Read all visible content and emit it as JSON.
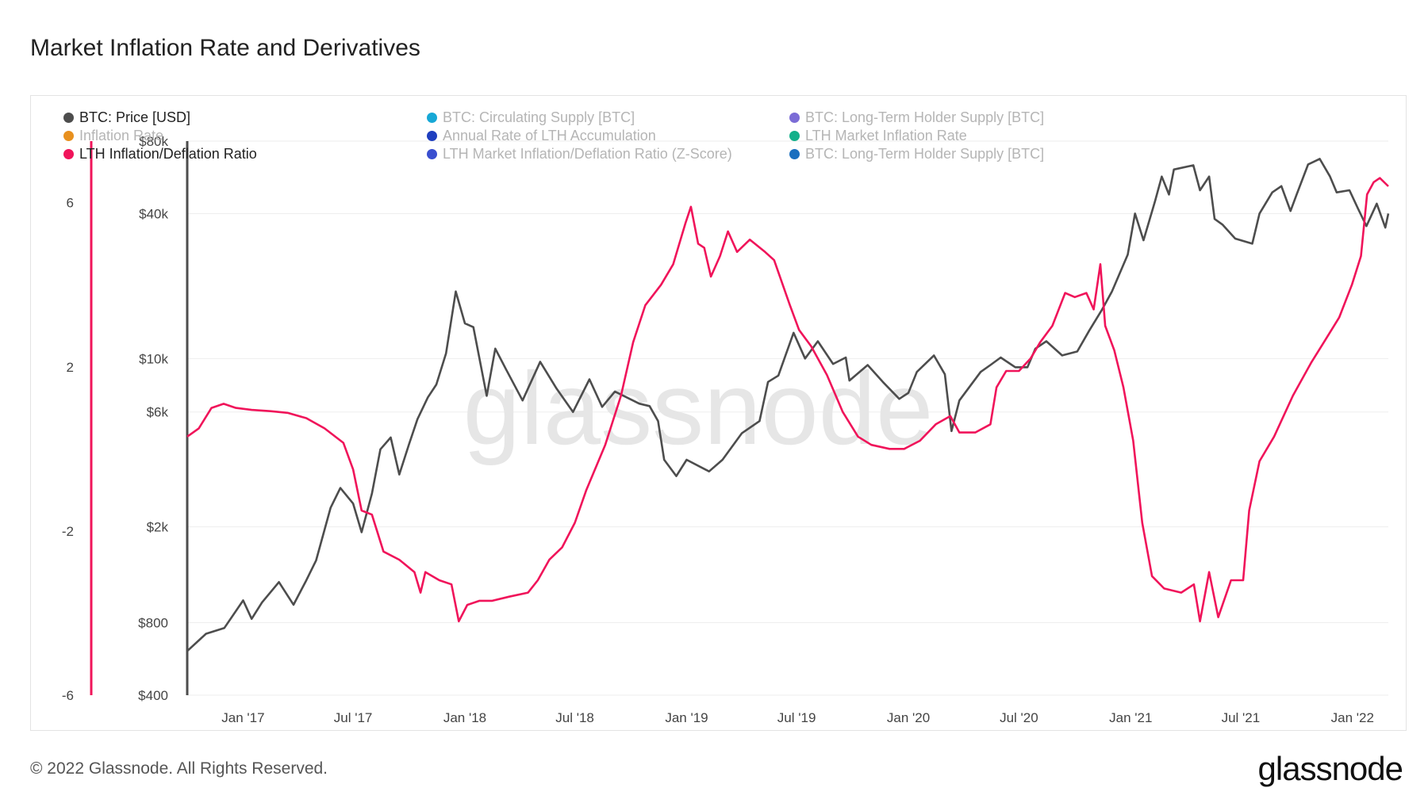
{
  "title": "Market Inflation Rate and Derivatives",
  "footer": {
    "copyright": "© 2022 Glassnode. All Rights Reserved.",
    "logo": "glassnode"
  },
  "watermark": "glassnode",
  "legend": [
    {
      "label": "BTC: Price [USD]",
      "color": "#4d4d4d",
      "active": true
    },
    {
      "label": "BTC: Circulating Supply [BTC]",
      "color": "#17a8d6",
      "active": false
    },
    {
      "label": "BTC: Long-Term Holder Supply [BTC]",
      "color": "#7b6cd6",
      "active": false
    },
    {
      "label": "Inflation Rate",
      "color": "#e8901e",
      "active": false
    },
    {
      "label": "Annual Rate of LTH Accumulation",
      "color": "#1f3fbf",
      "active": false
    },
    {
      "label": "LTH Market Inflation Rate",
      "color": "#12b08a",
      "active": false
    },
    {
      "label": "LTH Inflation/Deflation Ratio",
      "color": "#f0145a",
      "active": true
    },
    {
      "label": "LTH Market Inflation/Deflation Ratio (Z-Score)",
      "color": "#3a4fcf",
      "active": false
    },
    {
      "label": "BTC: Long-Term Holder Supply [BTC]",
      "color": "#1a6fbf",
      "active": false
    }
  ],
  "chart_data": {
    "type": "line",
    "x_tick_labels": [
      "Jan '17",
      "Jul '17",
      "Jan '18",
      "Jul '18",
      "Jan '19",
      "Jul '19",
      "Jan '20",
      "Jul '20",
      "Jan '21",
      "Jul '21",
      "Jan '22"
    ],
    "x_range": [
      "2016-10-01",
      "2022-03-01"
    ],
    "left_axis": {
      "ticks": [
        "6",
        "2",
        "-2",
        "-6"
      ],
      "values": [
        6,
        2,
        -2,
        -6
      ],
      "range": [
        -6,
        7.5
      ]
    },
    "right_axis": {
      "scale": "log",
      "ticks": [
        "$80k",
        "$40k",
        "$10k",
        "$6k",
        "$2k",
        "$800",
        "$400"
      ],
      "values": [
        80000,
        40000,
        10000,
        6000,
        2000,
        800,
        400
      ],
      "range": [
        400,
        80000
      ]
    },
    "series": [
      {
        "name": "BTC: Price [USD]",
        "color": "#4d4d4d",
        "axis": "right",
        "points": [
          [
            "2016-10-01",
            610
          ],
          [
            "2016-11-01",
            720
          ],
          [
            "2016-12-01",
            760
          ],
          [
            "2017-01-01",
            990
          ],
          [
            "2017-01-15",
            830
          ],
          [
            "2017-02-01",
            970
          ],
          [
            "2017-03-01",
            1180
          ],
          [
            "2017-03-25",
            950
          ],
          [
            "2017-04-15",
            1200
          ],
          [
            "2017-05-01",
            1450
          ],
          [
            "2017-05-25",
            2400
          ],
          [
            "2017-06-10",
            2900
          ],
          [
            "2017-07-01",
            2500
          ],
          [
            "2017-07-15",
            1900
          ],
          [
            "2017-08-01",
            2750
          ],
          [
            "2017-08-15",
            4200
          ],
          [
            "2017-09-01",
            4700
          ],
          [
            "2017-09-15",
            3300
          ],
          [
            "2017-10-01",
            4400
          ],
          [
            "2017-10-15",
            5600
          ],
          [
            "2017-11-01",
            6900
          ],
          [
            "2017-11-15",
            7800
          ],
          [
            "2017-12-01",
            10500
          ],
          [
            "2017-12-17",
            19000
          ],
          [
            "2018-01-01",
            14000
          ],
          [
            "2018-01-15",
            13500
          ],
          [
            "2018-02-06",
            7000
          ],
          [
            "2018-02-20",
            11000
          ],
          [
            "2018-03-10",
            9000
          ],
          [
            "2018-04-06",
            6700
          ],
          [
            "2018-05-05",
            9700
          ],
          [
            "2018-06-01",
            7500
          ],
          [
            "2018-06-28",
            6000
          ],
          [
            "2018-07-25",
            8200
          ],
          [
            "2018-08-15",
            6300
          ],
          [
            "2018-09-05",
            7300
          ],
          [
            "2018-10-15",
            6500
          ],
          [
            "2018-11-01",
            6350
          ],
          [
            "2018-11-15",
            5500
          ],
          [
            "2018-11-25",
            3800
          ],
          [
            "2018-12-15",
            3250
          ],
          [
            "2019-01-01",
            3800
          ],
          [
            "2019-02-07",
            3400
          ],
          [
            "2019-03-01",
            3800
          ],
          [
            "2019-04-02",
            4900
          ],
          [
            "2019-05-01",
            5500
          ],
          [
            "2019-05-15",
            8000
          ],
          [
            "2019-06-01",
            8500
          ],
          [
            "2019-06-26",
            12800
          ],
          [
            "2019-07-15",
            10000
          ],
          [
            "2019-08-05",
            11800
          ],
          [
            "2019-08-30",
            9500
          ],
          [
            "2019-09-20",
            10100
          ],
          [
            "2019-09-26",
            8100
          ],
          [
            "2019-10-26",
            9400
          ],
          [
            "2019-11-20",
            8000
          ],
          [
            "2019-12-17",
            6800
          ],
          [
            "2020-01-01",
            7200
          ],
          [
            "2020-01-15",
            8800
          ],
          [
            "2020-02-12",
            10300
          ],
          [
            "2020-03-01",
            8600
          ],
          [
            "2020-03-12",
            5000
          ],
          [
            "2020-03-25",
            6700
          ],
          [
            "2020-04-29",
            8800
          ],
          [
            "2020-05-15",
            9400
          ],
          [
            "2020-06-01",
            10100
          ],
          [
            "2020-06-25",
            9200
          ],
          [
            "2020-07-15",
            9200
          ],
          [
            "2020-07-28",
            11000
          ],
          [
            "2020-08-15",
            11800
          ],
          [
            "2020-09-10",
            10300
          ],
          [
            "2020-10-05",
            10700
          ],
          [
            "2020-10-25",
            13100
          ],
          [
            "2020-11-15",
            16000
          ],
          [
            "2020-12-01",
            19000
          ],
          [
            "2020-12-27",
            27000
          ],
          [
            "2021-01-08",
            40000
          ],
          [
            "2021-01-22",
            31000
          ],
          [
            "2021-02-10",
            45000
          ],
          [
            "2021-02-21",
            57000
          ],
          [
            "2021-03-05",
            48000
          ],
          [
            "2021-03-13",
            61000
          ],
          [
            "2021-04-14",
            63500
          ],
          [
            "2021-04-25",
            50000
          ],
          [
            "2021-05-10",
            57000
          ],
          [
            "2021-05-19",
            38000
          ],
          [
            "2021-06-01",
            36000
          ],
          [
            "2021-06-22",
            31500
          ],
          [
            "2021-07-20",
            30000
          ],
          [
            "2021-08-01",
            40000
          ],
          [
            "2021-08-22",
            49000
          ],
          [
            "2021-09-06",
            52000
          ],
          [
            "2021-09-21",
            41000
          ],
          [
            "2021-10-01",
            48000
          ],
          [
            "2021-10-20",
            64000
          ],
          [
            "2021-11-08",
            67500
          ],
          [
            "2021-11-25",
            57000
          ],
          [
            "2021-12-06",
            49000
          ],
          [
            "2021-12-27",
            50000
          ],
          [
            "2022-01-10",
            42000
          ],
          [
            "2022-01-24",
            35500
          ],
          [
            "2022-02-10",
            44000
          ],
          [
            "2022-02-24",
            35000
          ],
          [
            "2022-03-01",
            40000
          ]
        ]
      },
      {
        "name": "LTH Inflation/Deflation Ratio",
        "color": "#f0145a",
        "axis": "left",
        "points": [
          [
            "2016-10-01",
            0.3
          ],
          [
            "2016-10-20",
            0.5
          ],
          [
            "2016-11-10",
            1.0
          ],
          [
            "2016-11-30",
            1.1
          ],
          [
            "2016-12-20",
            1.0
          ],
          [
            "2017-01-15",
            0.95
          ],
          [
            "2017-02-15",
            0.92
          ],
          [
            "2017-03-15",
            0.88
          ],
          [
            "2017-04-15",
            0.75
          ],
          [
            "2017-05-15",
            0.5
          ],
          [
            "2017-06-15",
            0.15
          ],
          [
            "2017-07-01",
            -0.5
          ],
          [
            "2017-07-15",
            -1.5
          ],
          [
            "2017-08-01",
            -1.6
          ],
          [
            "2017-08-20",
            -2.5
          ],
          [
            "2017-09-15",
            -2.7
          ],
          [
            "2017-10-10",
            -3.0
          ],
          [
            "2017-10-20",
            -3.5
          ],
          [
            "2017-10-28",
            -3.0
          ],
          [
            "2017-11-20",
            -3.2
          ],
          [
            "2017-12-10",
            -3.3
          ],
          [
            "2017-12-22",
            -4.2
          ],
          [
            "2018-01-05",
            -3.8
          ],
          [
            "2018-01-25",
            -3.7
          ],
          [
            "2018-02-15",
            -3.7
          ],
          [
            "2018-03-15",
            -3.6
          ],
          [
            "2018-04-15",
            -3.5
          ],
          [
            "2018-05-01",
            -3.2
          ],
          [
            "2018-05-20",
            -2.7
          ],
          [
            "2018-06-10",
            -2.4
          ],
          [
            "2018-07-01",
            -1.8
          ],
          [
            "2018-07-20",
            -1.0
          ],
          [
            "2018-08-20",
            0.1
          ],
          [
            "2018-09-15",
            1.3
          ],
          [
            "2018-10-05",
            2.6
          ],
          [
            "2018-10-25",
            3.5
          ],
          [
            "2018-11-20",
            4.0
          ],
          [
            "2018-12-10",
            4.5
          ],
          [
            "2018-12-20",
            5.0
          ],
          [
            "2018-12-30",
            5.5
          ],
          [
            "2019-01-08",
            5.9
          ],
          [
            "2019-01-20",
            5.0
          ],
          [
            "2019-01-30",
            4.9
          ],
          [
            "2019-02-10",
            4.2
          ],
          [
            "2019-02-25",
            4.7
          ],
          [
            "2019-03-10",
            5.3
          ],
          [
            "2019-03-25",
            4.8
          ],
          [
            "2019-04-15",
            5.1
          ],
          [
            "2019-05-10",
            4.8
          ],
          [
            "2019-05-25",
            4.6
          ],
          [
            "2019-06-20",
            3.5
          ],
          [
            "2019-07-05",
            2.9
          ],
          [
            "2019-07-25",
            2.5
          ],
          [
            "2019-08-20",
            1.8
          ],
          [
            "2019-09-15",
            0.9
          ],
          [
            "2019-10-10",
            0.3
          ],
          [
            "2019-11-01",
            0.1
          ],
          [
            "2019-12-01",
            0.0
          ],
          [
            "2019-12-25",
            0.0
          ],
          [
            "2020-01-20",
            0.2
          ],
          [
            "2020-02-15",
            0.6
          ],
          [
            "2020-03-10",
            0.8
          ],
          [
            "2020-03-25",
            0.4
          ],
          [
            "2020-04-20",
            0.4
          ],
          [
            "2020-05-15",
            0.6
          ],
          [
            "2020-05-25",
            1.5
          ],
          [
            "2020-06-10",
            1.9
          ],
          [
            "2020-07-01",
            1.9
          ],
          [
            "2020-07-20",
            2.2
          ],
          [
            "2020-08-05",
            2.6
          ],
          [
            "2020-08-25",
            3.0
          ],
          [
            "2020-09-15",
            3.8
          ],
          [
            "2020-10-01",
            3.7
          ],
          [
            "2020-10-20",
            3.8
          ],
          [
            "2020-11-01",
            3.4
          ],
          [
            "2020-11-12",
            4.5
          ],
          [
            "2020-11-20",
            3.0
          ],
          [
            "2020-12-05",
            2.4
          ],
          [
            "2020-12-20",
            1.5
          ],
          [
            "2021-01-05",
            0.2
          ],
          [
            "2021-01-20",
            -1.8
          ],
          [
            "2021-02-05",
            -3.1
          ],
          [
            "2021-02-25",
            -3.4
          ],
          [
            "2021-03-25",
            -3.5
          ],
          [
            "2021-04-15",
            -3.3
          ],
          [
            "2021-04-25",
            -4.2
          ],
          [
            "2021-05-10",
            -3.0
          ],
          [
            "2021-05-25",
            -4.1
          ],
          [
            "2021-06-15",
            -3.2
          ],
          [
            "2021-07-05",
            -3.2
          ],
          [
            "2021-07-15",
            -1.5
          ],
          [
            "2021-08-01",
            -0.3
          ],
          [
            "2021-08-25",
            0.3
          ],
          [
            "2021-09-25",
            1.3
          ],
          [
            "2021-10-25",
            2.1
          ],
          [
            "2021-11-15",
            2.6
          ],
          [
            "2021-12-10",
            3.2
          ],
          [
            "2021-12-31",
            4.0
          ],
          [
            "2022-01-15",
            4.7
          ],
          [
            "2022-01-25",
            6.2
          ],
          [
            "2022-02-05",
            6.5
          ],
          [
            "2022-02-15",
            6.6
          ],
          [
            "2022-03-01",
            6.4
          ]
        ]
      }
    ]
  }
}
